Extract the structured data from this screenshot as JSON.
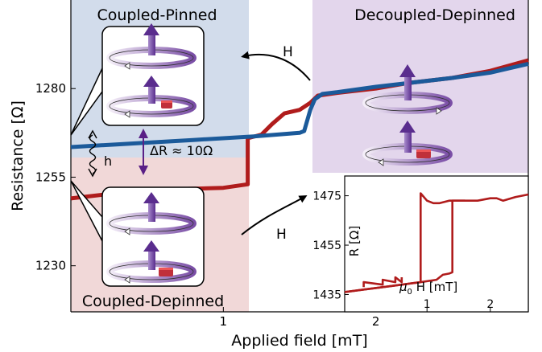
{
  "chart_data": {
    "type": "line",
    "xlabel": "Applied field [mT]",
    "ylabel": "Resistance [Ω]",
    "x_ticks": [
      1,
      2
    ],
    "y_ticks": [
      1230,
      1255,
      1280
    ],
    "xlim": [
      0,
      3.0
    ],
    "ylim": [
      1217,
      1305
    ],
    "series": [
      {
        "color": "#b01c1c",
        "points": [
          [
            0,
            1249
          ],
          [
            0.3,
            1250.5
          ],
          [
            0.6,
            1251.5
          ],
          [
            1.0,
            1252
          ],
          [
            1.16,
            1253
          ],
          [
            1.16,
            1266
          ],
          [
            1.25,
            1267
          ],
          [
            1.32,
            1270
          ],
          [
            1.4,
            1273
          ],
          [
            1.5,
            1274
          ],
          [
            1.57,
            1276
          ],
          [
            1.62,
            1278
          ],
          [
            1.75,
            1278.8
          ],
          [
            2.0,
            1280
          ],
          [
            2.2,
            1281.5
          ],
          [
            2.5,
            1283
          ],
          [
            2.75,
            1285
          ],
          [
            3.0,
            1288
          ]
        ]
      },
      {
        "color": "#1b5a9a",
        "points": [
          [
            0,
            1263.5
          ],
          [
            0.4,
            1264.5
          ],
          [
            0.8,
            1265.5
          ],
          [
            1.2,
            1266.5
          ],
          [
            1.5,
            1267.5
          ],
          [
            1.53,
            1268
          ],
          [
            1.57,
            1274
          ],
          [
            1.6,
            1277
          ],
          [
            1.65,
            1278.5
          ],
          [
            1.75,
            1279
          ],
          [
            2.0,
            1280.5
          ],
          [
            2.2,
            1281.5
          ],
          [
            2.5,
            1283
          ],
          [
            2.75,
            1284.5
          ],
          [
            3.0,
            1287
          ]
        ]
      }
    ],
    "inset": {
      "type": "line",
      "xlabel_symbol": "μ",
      "xlabel_sub": "0",
      "xlabel_rest": " H [mT]",
      "ylabel": "R [Ω]",
      "x_ticks": [
        1,
        2
      ],
      "y_ticks": [
        1435,
        1455,
        1475
      ],
      "xlim": [
        -0.3,
        2.6
      ],
      "ylim": [
        1428,
        1483
      ],
      "series": [
        {
          "color": "#b01c1c",
          "points": [
            [
              -0.3,
              1436
            ],
            [
              0.0,
              1437
            ],
            [
              0.3,
              1438
            ],
            [
              0.6,
              1439
            ],
            [
              0.9,
              1440
            ],
            [
              0.9,
              1476
            ],
            [
              1.0,
              1473
            ],
            [
              1.1,
              1472
            ],
            [
              1.2,
              1472
            ],
            [
              1.35,
              1473
            ],
            [
              1.5,
              1473
            ],
            [
              1.8,
              1473
            ],
            [
              2.0,
              1474
            ],
            [
              2.1,
              1474
            ],
            [
              2.2,
              1473
            ],
            [
              2.4,
              1474.5
            ],
            [
              2.6,
              1475.5
            ]
          ]
        },
        {
          "color": "#b01c1c",
          "points": [
            [
              -0.3,
              1436
            ],
            [
              0.0,
              1437
            ],
            [
              0.3,
              1438
            ],
            [
              0.6,
              1439
            ],
            [
              0.9,
              1440
            ],
            [
              1.15,
              1441
            ],
            [
              1.25,
              1443
            ],
            [
              1.35,
              1443.5
            ],
            [
              1.4,
              1444
            ],
            [
              1.4,
              1473
            ],
            [
              1.6,
              1473
            ]
          ]
        },
        {
          "color": "#b01c1c",
          "points": [
            [
              0.0,
              1438
            ],
            [
              0.0,
              1440
            ],
            [
              0.3,
              1439
            ],
            [
              0.3,
              1441
            ],
            [
              0.5,
              1440
            ],
            [
              0.5,
              1442
            ],
            [
              0.6,
              1440
            ],
            [
              0.6,
              1442
            ]
          ]
        }
      ]
    },
    "annotations": {
      "top_left": "Coupled-Pinned",
      "top_right": "Decoupled-Depinned",
      "bottom_left": "Coupled-Depinned",
      "arrow_top": "H",
      "arrow_bottom": "H",
      "small_h": "h",
      "delta": "ΔR ≈ 10Ω"
    },
    "colors": {
      "blue_region": "#d2dceb",
      "purple_region": "#e3d6ec",
      "red_region": "#f1d8d8",
      "delta_arrow": "#5a1f86"
    }
  }
}
